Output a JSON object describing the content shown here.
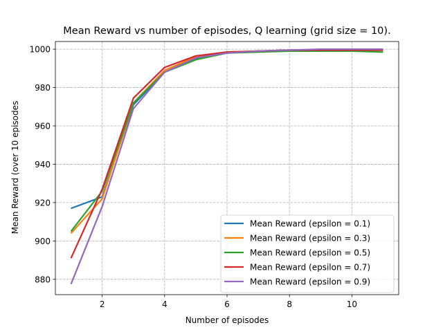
{
  "chart_data": {
    "type": "line",
    "title": "Mean Reward vs number of episodes, Q learning (grid size = 10).",
    "xlabel": "Number of episodes",
    "ylabel": "Mean Reward (over 10 episodes",
    "xlim": [
      0.5,
      11.5
    ],
    "ylim": [
      872,
      1004
    ],
    "xticks": [
      2,
      4,
      6,
      8,
      10
    ],
    "yticks": [
      880,
      900,
      920,
      940,
      960,
      980,
      1000
    ],
    "grid": true,
    "legend_position": "lower-right",
    "x": [
      1,
      2,
      3,
      4,
      5,
      6,
      7,
      8,
      9,
      10,
      11
    ],
    "series": [
      {
        "name": "Mean Reward (epsilon = 0.1)",
        "color": "#1f77b4",
        "values": [
          917,
          923,
          971,
          988,
          995,
          998,
          999,
          999.5,
          999.5,
          999.5,
          999.5
        ]
      },
      {
        "name": "Mean Reward (epsilon = 0.3)",
        "color": "#ff7f0e",
        "values": [
          904,
          922,
          972,
          989,
          996,
          998.5,
          999,
          999.5,
          999.5,
          999.5,
          999.5
        ]
      },
      {
        "name": "Mean Reward (epsilon = 0.5)",
        "color": "#2ca02c",
        "values": [
          905,
          926,
          972,
          988,
          994.5,
          998,
          998.5,
          999,
          999,
          999,
          998.5
        ]
      },
      {
        "name": "Mean Reward (epsilon = 0.7)",
        "color": "#d62728",
        "values": [
          891,
          927,
          974.5,
          990.5,
          996.5,
          998.5,
          999,
          999.5,
          999.5,
          999.5,
          999.5
        ]
      },
      {
        "name": "Mean Reward (epsilon = 0.9)",
        "color": "#9467bd",
        "values": [
          877.5,
          918,
          969,
          988,
          995.5,
          998,
          999,
          999.5,
          1000,
          1000,
          1000
        ]
      }
    ]
  }
}
